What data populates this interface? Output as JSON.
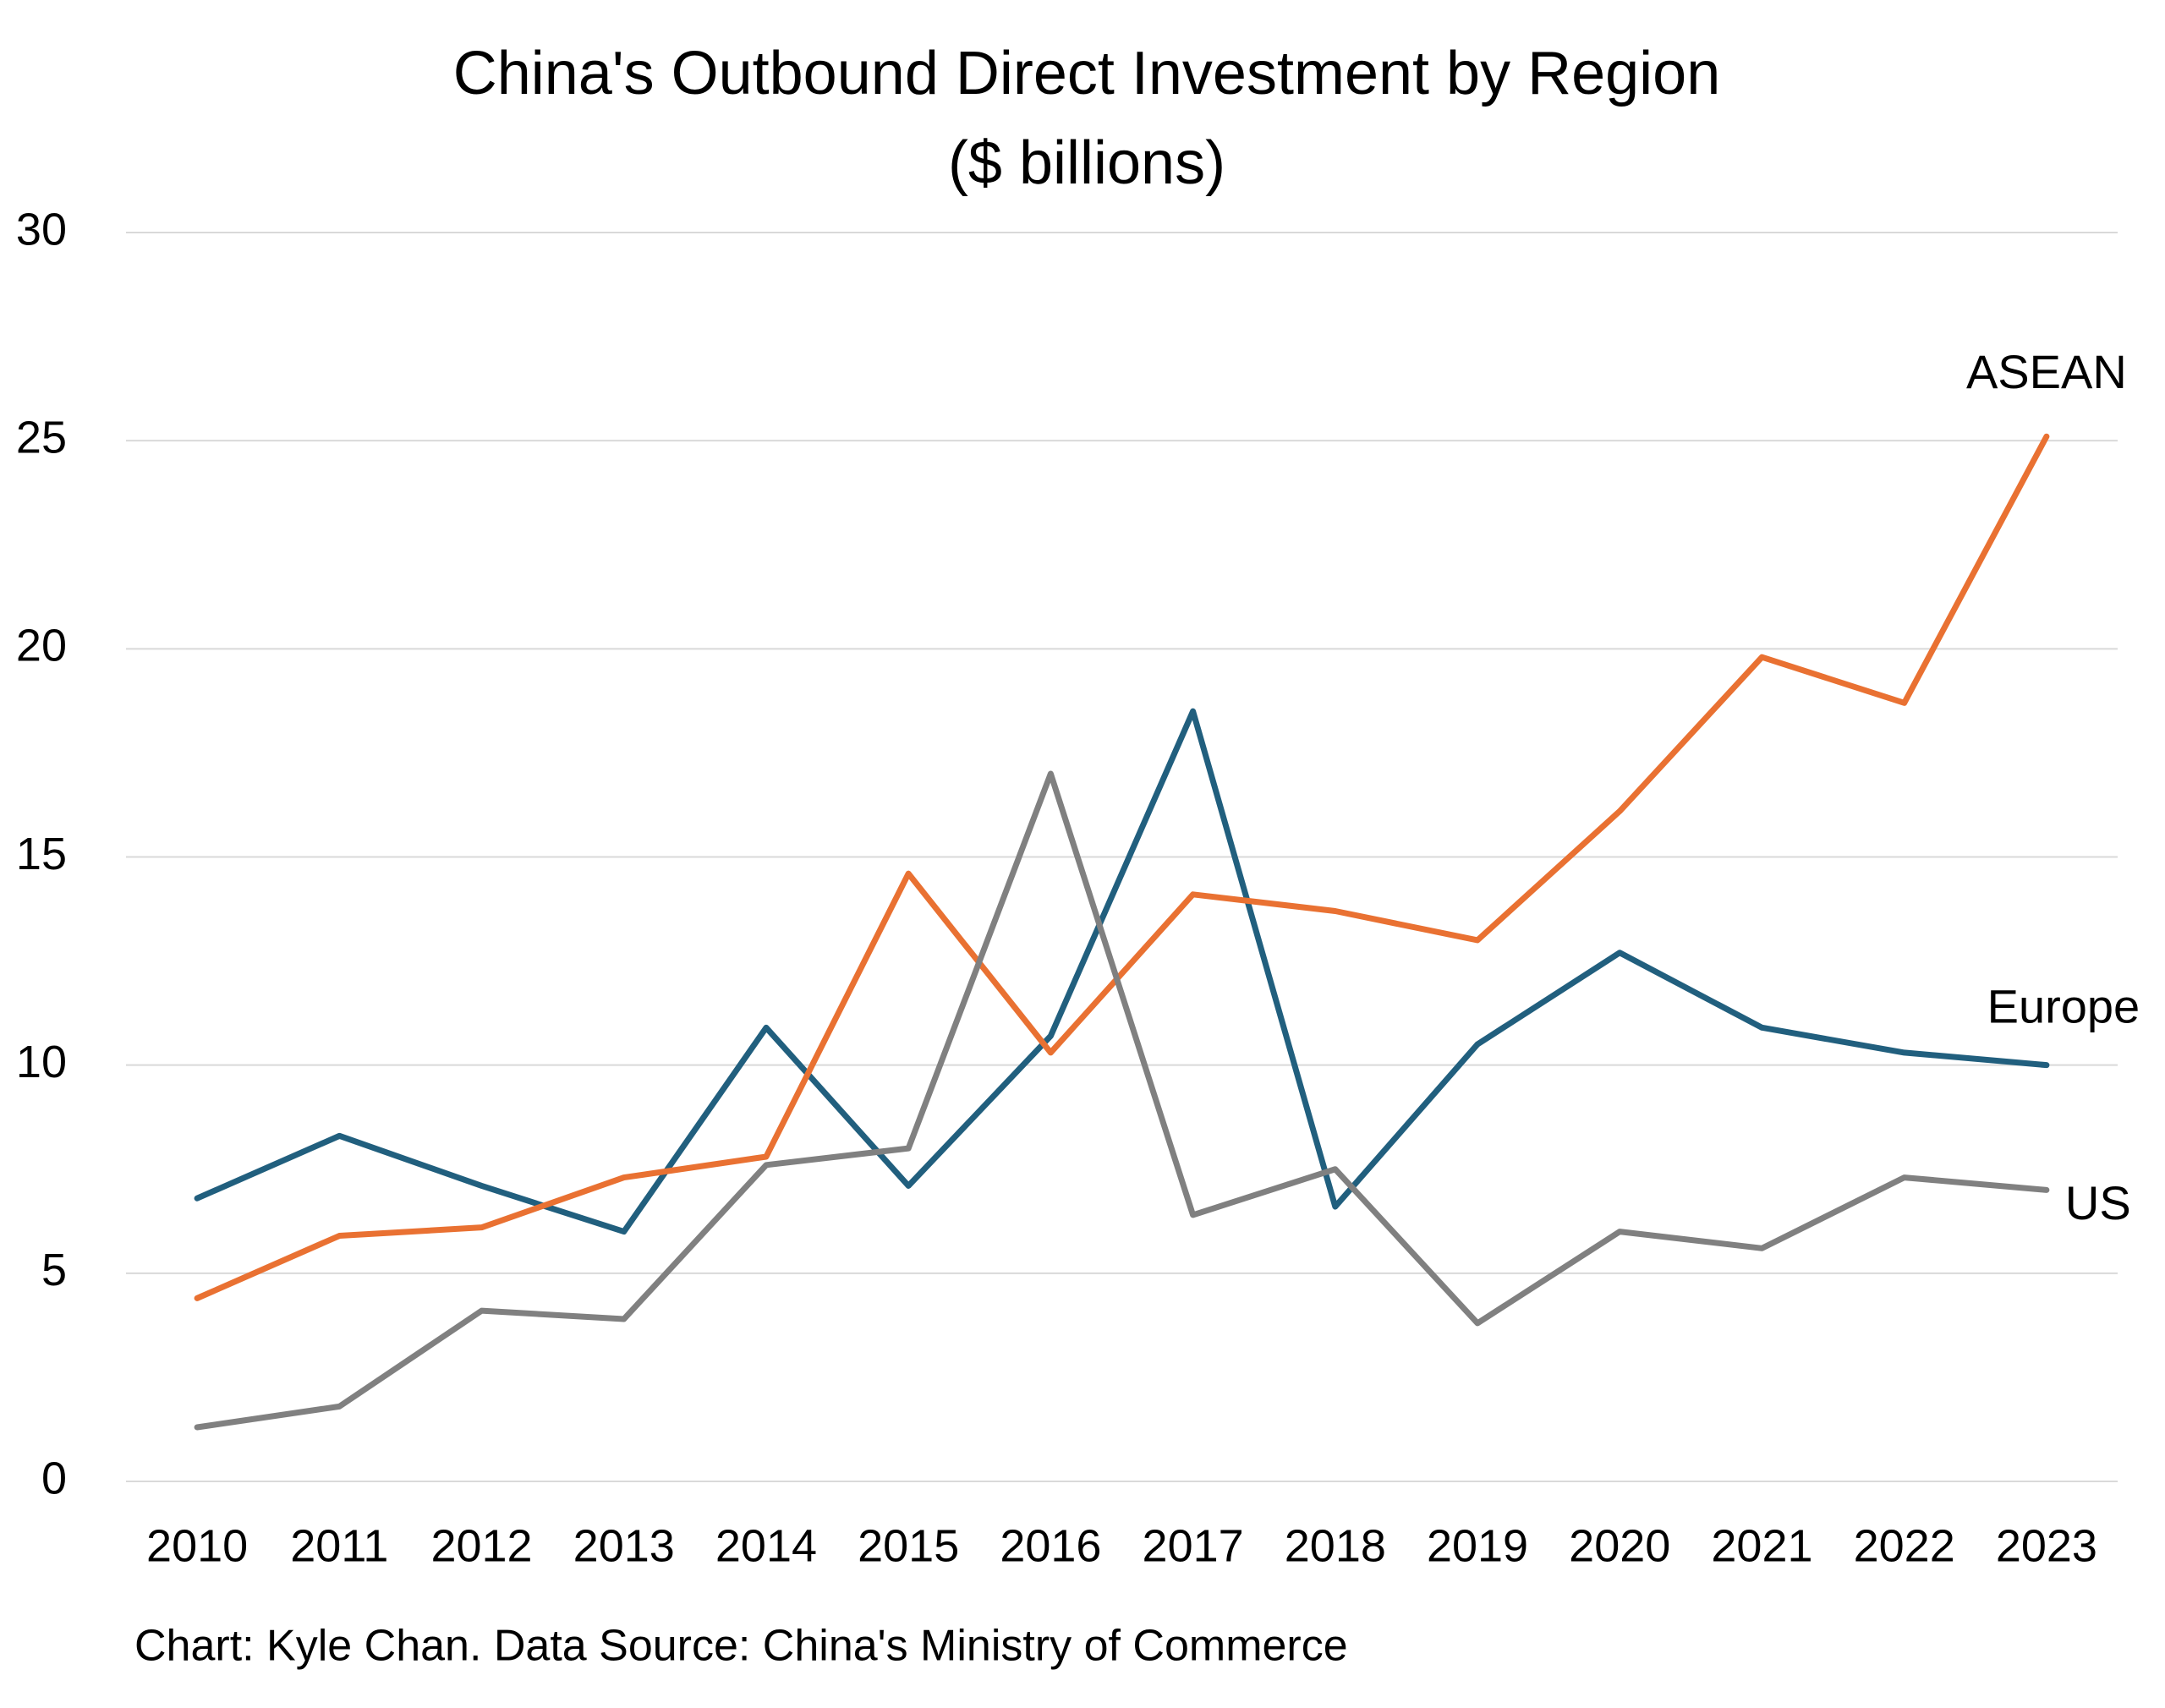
{
  "chart_data": {
    "type": "line",
    "title": "China's Outbound Direct Investment by Region",
    "subtitle": "($ billions)",
    "source": "Chart: Kyle Chan. Data Source: China's Ministry of Commerce",
    "categories": [
      "2010",
      "2011",
      "2012",
      "2013",
      "2014",
      "2015",
      "2016",
      "2017",
      "2018",
      "2019",
      "2020",
      "2021",
      "2022",
      "2023"
    ],
    "series": [
      {
        "name": "Europe",
        "color": "#215f7e",
        "values": [
          6.8,
          8.3,
          7.1,
          6.0,
          10.9,
          7.1,
          10.7,
          18.5,
          6.6,
          10.5,
          12.7,
          10.9,
          10.3,
          10.0
        ]
      },
      {
        "name": "ASEAN",
        "color": "#e97132",
        "values": [
          4.4,
          5.9,
          6.1,
          7.3,
          7.8,
          14.6,
          10.3,
          14.1,
          13.7,
          13.0,
          16.1,
          19.8,
          18.7,
          25.1
        ]
      },
      {
        "name": "US",
        "color": "#808080",
        "values": [
          1.3,
          1.8,
          4.1,
          3.9,
          7.6,
          8.0,
          17.0,
          6.4,
          7.5,
          3.8,
          6.0,
          5.6,
          7.3,
          7.0
        ]
      }
    ],
    "ylim": [
      0,
      30
    ],
    "yticks": [
      0,
      5,
      10,
      15,
      20,
      25,
      30
    ],
    "grid": true,
    "legend": "line-end"
  }
}
